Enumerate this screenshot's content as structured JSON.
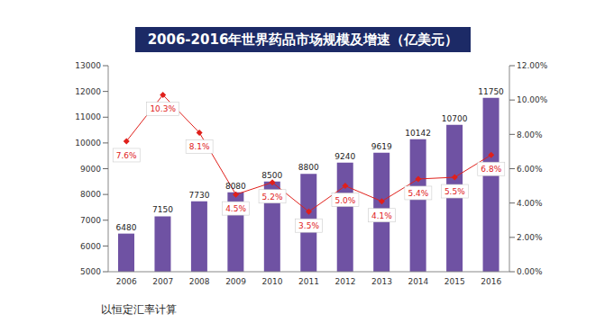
{
  "chart_data": {
    "type": "bar",
    "title": "2006-2016年世界药品市场规模及增速（亿美元）",
    "footnote": "以恒定汇率计算",
    "categories": [
      "2006",
      "2007",
      "2008",
      "2009",
      "2010",
      "2011",
      "2012",
      "2013",
      "2014",
      "2015",
      "2016"
    ],
    "series": [
      {
        "type": "bar",
        "color": "#6f52a3",
        "values": [
          6480,
          7150,
          7730,
          8080,
          8500,
          8800,
          9240,
          9619,
          10142,
          10700,
          11750
        ]
      },
      {
        "type": "line",
        "axis": "y2",
        "color": "#e0201b",
        "marker": "diamond",
        "values": [
          7.6,
          10.3,
          8.1,
          4.5,
          5.2,
          3.5,
          5.0,
          4.1,
          5.4,
          5.5,
          6.8
        ],
        "value_labels": [
          "7.6%",
          "10.3%",
          "8.1%",
          "4.5%",
          "5.2%",
          "3.5%",
          "5.0%",
          "4.1%",
          "5.4%",
          "5.5%",
          "6.8%"
        ]
      }
    ],
    "ylim": [
      5000,
      13000
    ],
    "yticks": [
      5000,
      6000,
      7000,
      8000,
      9000,
      10000,
      11000,
      12000,
      13000
    ],
    "y2lim": [
      0,
      12
    ],
    "y2ticks": [
      {
        "value": 0,
        "label": "0.00%"
      },
      {
        "value": 2,
        "label": "2.00%"
      },
      {
        "value": 4,
        "label": "4.00%"
      },
      {
        "value": 6,
        "label": "6.00%"
      },
      {
        "value": 8,
        "label": "8.00%"
      },
      {
        "value": 10,
        "label": "10.00%"
      },
      {
        "value": 12,
        "label": "12.00%"
      }
    ],
    "grid": false,
    "data_labels": true
  }
}
